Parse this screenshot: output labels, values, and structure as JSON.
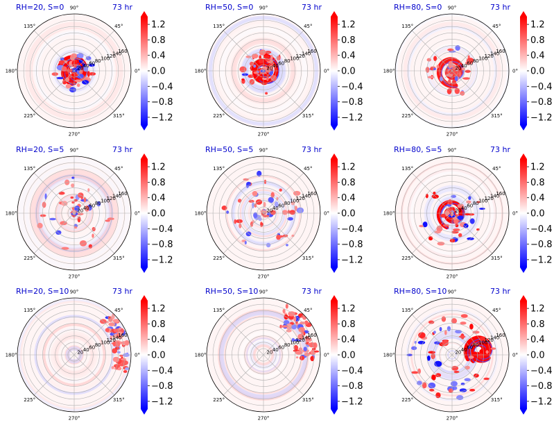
{
  "chart_data": {
    "type": "heatmap",
    "layout": {
      "rows": 3,
      "cols": 3
    },
    "theta_ticks_deg": [
      0,
      45,
      90,
      135,
      180,
      225,
      270,
      315
    ],
    "theta_tick_labels": [
      "0°",
      "45°",
      "90°",
      "135°",
      "180°",
      "225°",
      "270°",
      "315°"
    ],
    "r_ticks": [
      20,
      40,
      60,
      80,
      100,
      120,
      140,
      160
    ],
    "r_tick_angle_deg": 22.5,
    "r_max": 180,
    "colorbar": {
      "colormap": "bwr",
      "vmin": -1.4,
      "vmax": 1.4,
      "extend": "both",
      "ticks": [
        1.2,
        0.8,
        0.4,
        0.0,
        -0.4,
        -0.8,
        -1.2
      ],
      "tick_labels": [
        "1.2",
        "0.8",
        "0.4",
        "0.0",
        "−0.4",
        "−0.8",
        "−1.2"
      ]
    },
    "panels": [
      {
        "title": "RH=20, S=0",
        "time": "73 hr",
        "pattern": "eye",
        "r_center": 30,
        "theta_center_deg": 0,
        "spread": 55,
        "intensity": 1.0,
        "seed": 11
      },
      {
        "title": "RH=50, S=0",
        "time": "73 hr",
        "pattern": "eye",
        "r_center": 30,
        "theta_center_deg": 0,
        "spread": 70,
        "intensity": 1.0,
        "seed": 23
      },
      {
        "title": "RH=80, S=0",
        "time": "73 hr",
        "pattern": "eye",
        "r_center": 30,
        "theta_center_deg": 0,
        "spread": 90,
        "intensity": 0.9,
        "seed": 37
      },
      {
        "title": "RH=20, S=5",
        "time": "73 hr",
        "pattern": "scatter",
        "r_center": 45,
        "theta_center_deg": 30,
        "spread": 130,
        "intensity": 0.8,
        "seed": 41
      },
      {
        "title": "RH=50, S=5",
        "time": "73 hr",
        "pattern": "scatter",
        "r_center": 60,
        "theta_center_deg": 150,
        "spread": 110,
        "intensity": 0.8,
        "seed": 53
      },
      {
        "title": "RH=80, S=5",
        "time": "73 hr",
        "pattern": "eye",
        "r_center": 40,
        "theta_center_deg": 10,
        "spread": 110,
        "intensity": 1.0,
        "seed": 67
      },
      {
        "title": "RH=20, S=10",
        "time": "73 hr",
        "pattern": "edge",
        "r_center": 150,
        "theta_center_deg": 15,
        "spread": 40,
        "intensity": 0.8,
        "seed": 71
      },
      {
        "title": "RH=50, S=10",
        "time": "73 hr",
        "pattern": "edge",
        "r_center": 140,
        "theta_center_deg": 30,
        "spread": 60,
        "intensity": 0.9,
        "seed": 83
      },
      {
        "title": "RH=80, S=10",
        "time": "73 hr",
        "pattern": "offset",
        "r_center": 90,
        "theta_center_deg": 10,
        "spread": 80,
        "intensity": 1.0,
        "seed": 97
      }
    ]
  }
}
